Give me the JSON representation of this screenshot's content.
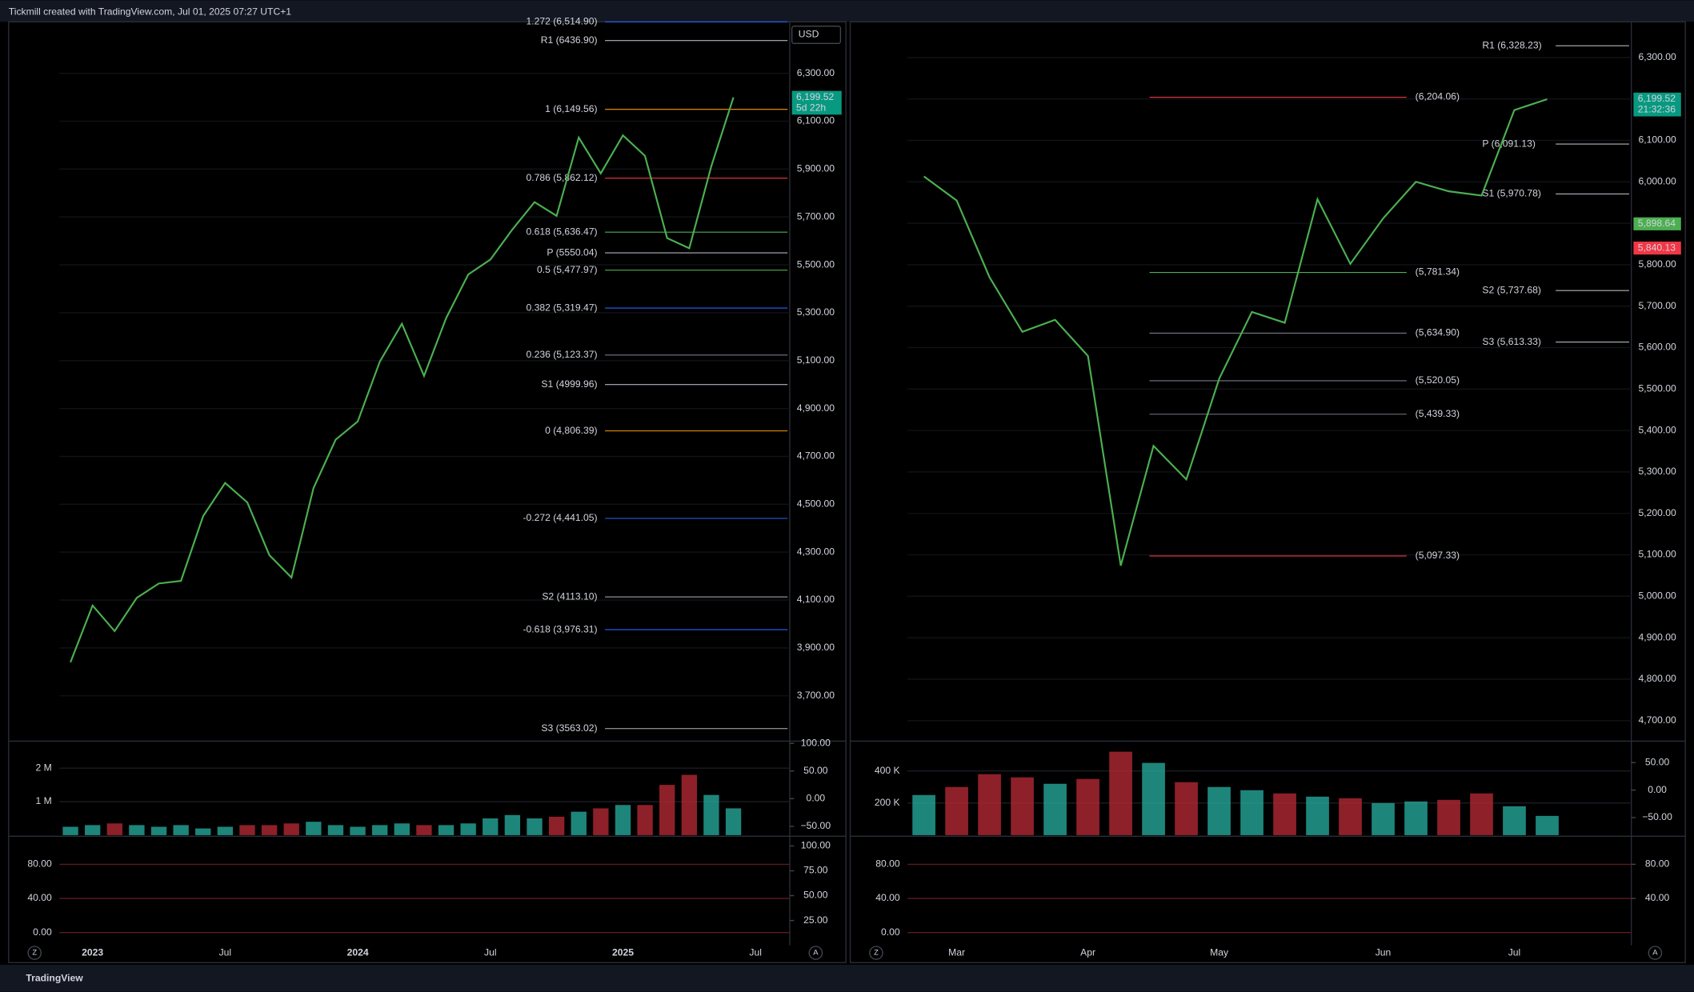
{
  "header": {
    "title": "Tickmill created with TradingView.com, Jul 01, 2025 07:27 UTC+1"
  },
  "footer": {
    "brand": "TradingView"
  },
  "chart_data": [
    {
      "type": "line",
      "currency": "USD",
      "color": "#4caf50",
      "categories": [
        null,
        "2023",
        null,
        null,
        null,
        null,
        null,
        "Jul",
        null,
        null,
        null,
        null,
        null,
        "2024",
        null,
        null,
        null,
        null,
        null,
        "Jul",
        null,
        null,
        null,
        null,
        null,
        "2025",
        null,
        null,
        null,
        null,
        null,
        "Jul",
        null
      ],
      "values": [
        3840,
        4077,
        3970,
        4109,
        4169,
        4180,
        4450,
        4589,
        4508,
        4288,
        4194,
        4568,
        4770,
        4846,
        5096,
        5254,
        5036,
        5278,
        5460,
        5522,
        5648,
        5762,
        5705,
        6032,
        5882,
        6041,
        5955,
        5612,
        5569,
        5912,
        6199.52,
        null,
        null
      ],
      "ylim": [
        3515,
        6515
      ],
      "yticks": [
        {
          "value": 3700,
          "label": "3,700.00"
        },
        {
          "value": 3900,
          "label": "3,900.00"
        },
        {
          "value": 4100,
          "label": "4,100.00"
        },
        {
          "value": 4300,
          "label": "4,300.00"
        },
        {
          "value": 4500,
          "label": "4,500.00"
        },
        {
          "value": 4700,
          "label": "4,700.00"
        },
        {
          "value": 4900,
          "label": "4,900.00"
        },
        {
          "value": 5100,
          "label": "5,100.00"
        },
        {
          "value": 5300,
          "label": "5,300.00"
        },
        {
          "value": 5500,
          "label": "5,500.00"
        },
        {
          "value": 5700,
          "label": "5,700.00"
        },
        {
          "value": 5900,
          "label": "5,900.00"
        },
        {
          "value": 6100,
          "label": "6,100.00"
        },
        {
          "value": 6300,
          "label": "6,300.00"
        }
      ],
      "levels": [
        {
          "label": "1.272 (6,514.90)",
          "value": 6514.9,
          "color": "#2962ff"
        },
        {
          "label": "R1 (6436.90)",
          "value": 6436.9,
          "color": "#b2b5be"
        },
        {
          "label": "1 (6,149.56)",
          "value": 6149.56,
          "color": "#ff9800"
        },
        {
          "label": "0.786 (5,862.12)",
          "value": 5862.12,
          "color": "#f23645"
        },
        {
          "label": "0.618 (5,636.47)",
          "value": 5636.47,
          "color": "#4caf50"
        },
        {
          "label": "P (5550.04)",
          "value": 5550.04,
          "color": "#b2b5be"
        },
        {
          "label": "0.5 (5,477.97)",
          "value": 5477.97,
          "color": "#4caf50"
        },
        {
          "label": "0.382 (5,319.47)",
          "value": 5319.47,
          "color": "#2962ff"
        },
        {
          "label": "0.236 (5,123.37)",
          "value": 5123.37,
          "color": "#787b86"
        },
        {
          "label": "S1 (4999.96)",
          "value": 4999.96,
          "color": "#b2b5be"
        },
        {
          "label": "0 (4,806.39)",
          "value": 4806.39,
          "color": "#ff9800"
        },
        {
          "label": "-0.272 (4,441.05)",
          "value": 4441.05,
          "color": "#2962ff"
        },
        {
          "label": "S2 (4113.10)",
          "value": 4113.1,
          "color": "#b2b5be"
        },
        {
          "label": "-0.618 (3,976.31)",
          "value": 3976.31,
          "color": "#2962ff"
        },
        {
          "label": "S3 (3563.02)",
          "value": 3563.02,
          "color": "#b2b5be"
        }
      ],
      "price_tags": [
        {
          "value": 6199.52,
          "label": "6,199.52",
          "note": "5d 22h",
          "color": "#089981"
        }
      ],
      "panes": [
        {
          "type": "bar",
          "color": "#26a69a",
          "values": [
            250000,
            300000,
            350000,
            300000,
            250000,
            300000,
            200000,
            250000,
            300000,
            300000,
            350000,
            400000,
            300000,
            250000,
            300000,
            350000,
            300000,
            300000,
            350000,
            500000,
            600000,
            500000,
            550000,
            700000,
            800000,
            900000,
            900000,
            1500000,
            1800000,
            1200000,
            800000,
            null,
            null
          ],
          "ylim": [
            0,
            2740000
          ],
          "yticks": [
            {
              "value": 1000000,
              "label": "1 M"
            },
            {
              "value": 2000000,
              "label": "2 M"
            }
          ],
          "y2lim": [
            -66,
            100
          ],
          "y2ticks": [
            {
              "value": -50,
              "label": "−50.00"
            },
            {
              "value": 0,
              "label": "0.00"
            },
            {
              "value": 50,
              "label": "50.00"
            },
            {
              "value": 100,
              "label": "100.00"
            }
          ]
        },
        {
          "ylim": [
            -15,
            111.7
          ],
          "yticks": [
            {
              "value": 0,
              "label": "0.00"
            },
            {
              "value": 40,
              "label": "40.00"
            },
            {
              "value": 80,
              "label": "80.00"
            }
          ],
          "y2lim": [
            0,
            108.7
          ],
          "y2ticks": [
            {
              "value": 25,
              "label": "25.00"
            },
            {
              "value": 50,
              "label": "50.00"
            },
            {
              "value": 75,
              "label": "75.00"
            },
            {
              "value": 100,
              "label": "100.00"
            }
          ]
        }
      ],
      "buttons": [
        "Z",
        "A"
      ]
    },
    {
      "type": "line",
      "color": "#4caf50",
      "categories": [
        null,
        "Mar",
        null,
        null,
        null,
        "Apr",
        null,
        null,
        null,
        "May",
        null,
        null,
        null,
        null,
        "Jun",
        null,
        null,
        null,
        "Jul",
        null,
        null,
        null
      ],
      "values": [
        6013,
        5955,
        5770,
        5638,
        5667,
        5580,
        5074,
        5363,
        5282,
        5525,
        5686,
        5660,
        5958,
        5802,
        5912,
        6000,
        5977,
        5967,
        6173,
        6199.52,
        null,
        null
      ],
      "ylim": [
        4653,
        6386
      ],
      "yticks": [
        {
          "value": 4700,
          "label": "4,700.00"
        },
        {
          "value": 4800,
          "label": "4,800.00"
        },
        {
          "value": 4900,
          "label": "4,900.00"
        },
        {
          "value": 5000,
          "label": "5,000.00"
        },
        {
          "value": 5100,
          "label": "5,100.00"
        },
        {
          "value": 5200,
          "label": "5,200.00"
        },
        {
          "value": 5300,
          "label": "5,300.00"
        },
        {
          "value": 5400,
          "label": "5,400.00"
        },
        {
          "value": 5500,
          "label": "5,500.00"
        },
        {
          "value": 5600,
          "label": "5,600.00"
        },
        {
          "value": 5700,
          "label": "5,700.00"
        },
        {
          "value": 5800,
          "label": "5,800.00"
        },
        {
          "value": 5900,
          "label": "5,900.00"
        },
        {
          "value": 6000,
          "label": "6,000.00"
        },
        {
          "value": 6100,
          "label": "6,100.00"
        },
        {
          "value": 6200,
          "label": "6,200.00"
        },
        {
          "value": 6300,
          "label": "6,300.00"
        }
      ],
      "levels": [
        {
          "label": "R1 (6,328.23)",
          "value": 6328.23,
          "color": "#b2b5be"
        },
        {
          "label": "(6,204.06)",
          "value": 6204.06,
          "color": "#f23645"
        },
        {
          "label": "P (6,091.13)",
          "value": 6091.13,
          "color": "#b2b5be"
        },
        {
          "label": "S1 (5,970.78)",
          "value": 5970.78,
          "color": "#b2b5be"
        },
        {
          "label": "(5,781.34)",
          "value": 5781.34,
          "color": "#4caf50"
        },
        {
          "label": "S2 (5,737.68)",
          "value": 5737.68,
          "color": "#b2b5be"
        },
        {
          "label": "(5,634.90)",
          "value": 5634.9,
          "color": "#787b86"
        },
        {
          "label": "S3 (5,613.33)",
          "value": 5613.33,
          "color": "#b2b5be"
        },
        {
          "label": "(5,520.05)",
          "value": 5520.05,
          "color": "#787b86"
        },
        {
          "label": "(5,439.33)",
          "value": 5439.33,
          "color": "#787b86"
        },
        {
          "label": "(5,097.33)",
          "value": 5097.33,
          "color": "#f23645"
        }
      ],
      "price_tags": [
        {
          "value": 6199.52,
          "label": "6,199.52",
          "note": "21:32:36",
          "color": "#089981"
        },
        {
          "value": 5898.64,
          "label": "5,898.64",
          "color": "#4caf50"
        },
        {
          "value": 5840.13,
          "label": "5,840.13",
          "color": "#f23645"
        }
      ],
      "panes": [
        {
          "type": "bar",
          "color": "#26a69a",
          "values": [
            250000,
            300000,
            380000,
            360000,
            320000,
            350000,
            520000,
            450000,
            330000,
            300000,
            280000,
            260000,
            240000,
            230000,
            200000,
            210000,
            220000,
            260000,
            180000,
            120000,
            null,
            null
          ],
          "ylim": [
            0,
            572000
          ],
          "yticks": [
            {
              "value": 200000,
              "label": "200 K"
            },
            {
              "value": 400000,
              "label": "400 K"
            }
          ],
          "y2lim": [
            -82,
            85
          ],
          "y2ticks": [
            {
              "value": -50,
              "label": "−50.00"
            },
            {
              "value": 0,
              "label": "0.00"
            },
            {
              "value": 50,
              "label": "50.00"
            }
          ]
        },
        {
          "ylim": [
            -15,
            111.7
          ],
          "yticks": [
            {
              "value": 0,
              "label": "0.00"
            },
            {
              "value": 40,
              "label": "40.00"
            },
            {
              "value": 80,
              "label": "80.00"
            }
          ],
          "y2lim": [
            -15,
            111.7
          ],
          "y2ticks": [
            {
              "value": 40,
              "label": "40.00"
            },
            {
              "value": 80,
              "label": "80.00"
            }
          ]
        }
      ],
      "buttons": [
        "Z",
        "A"
      ]
    }
  ]
}
